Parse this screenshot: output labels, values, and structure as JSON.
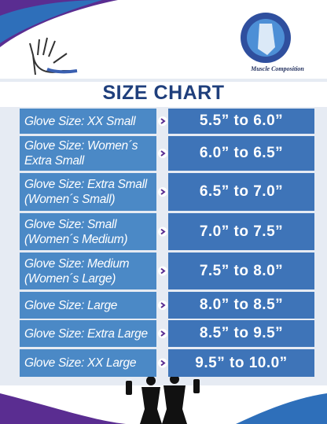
{
  "header": {
    "brand": "Muscle Composition",
    "title": "SIZE CHART"
  },
  "table": {
    "rows": [
      [
        "Glove Size:  XX Small",
        "5.5” to 6.0”"
      ],
      [
        "Glove Size: Women´s\nExtra Small",
        "6.0” to 6.5”"
      ],
      [
        "Glove Size: Extra Small\n(Women´s Small)",
        "6.5” to 7.0”"
      ],
      [
        "Glove Size: Small\n(Women´s Medium)",
        "7.0” to 7.5”"
      ],
      [
        "Glove Size: Medium\n(Women´s Large)",
        "7.5” to 8.0”"
      ],
      [
        "Glove Size: Large",
        "8.0” to 8.5”"
      ],
      [
        "Glove Size: Extra Large",
        "8.5” to 9.5”"
      ],
      [
        "Glove Size: XX Large",
        "9.5” to 10.0”"
      ]
    ]
  }
}
